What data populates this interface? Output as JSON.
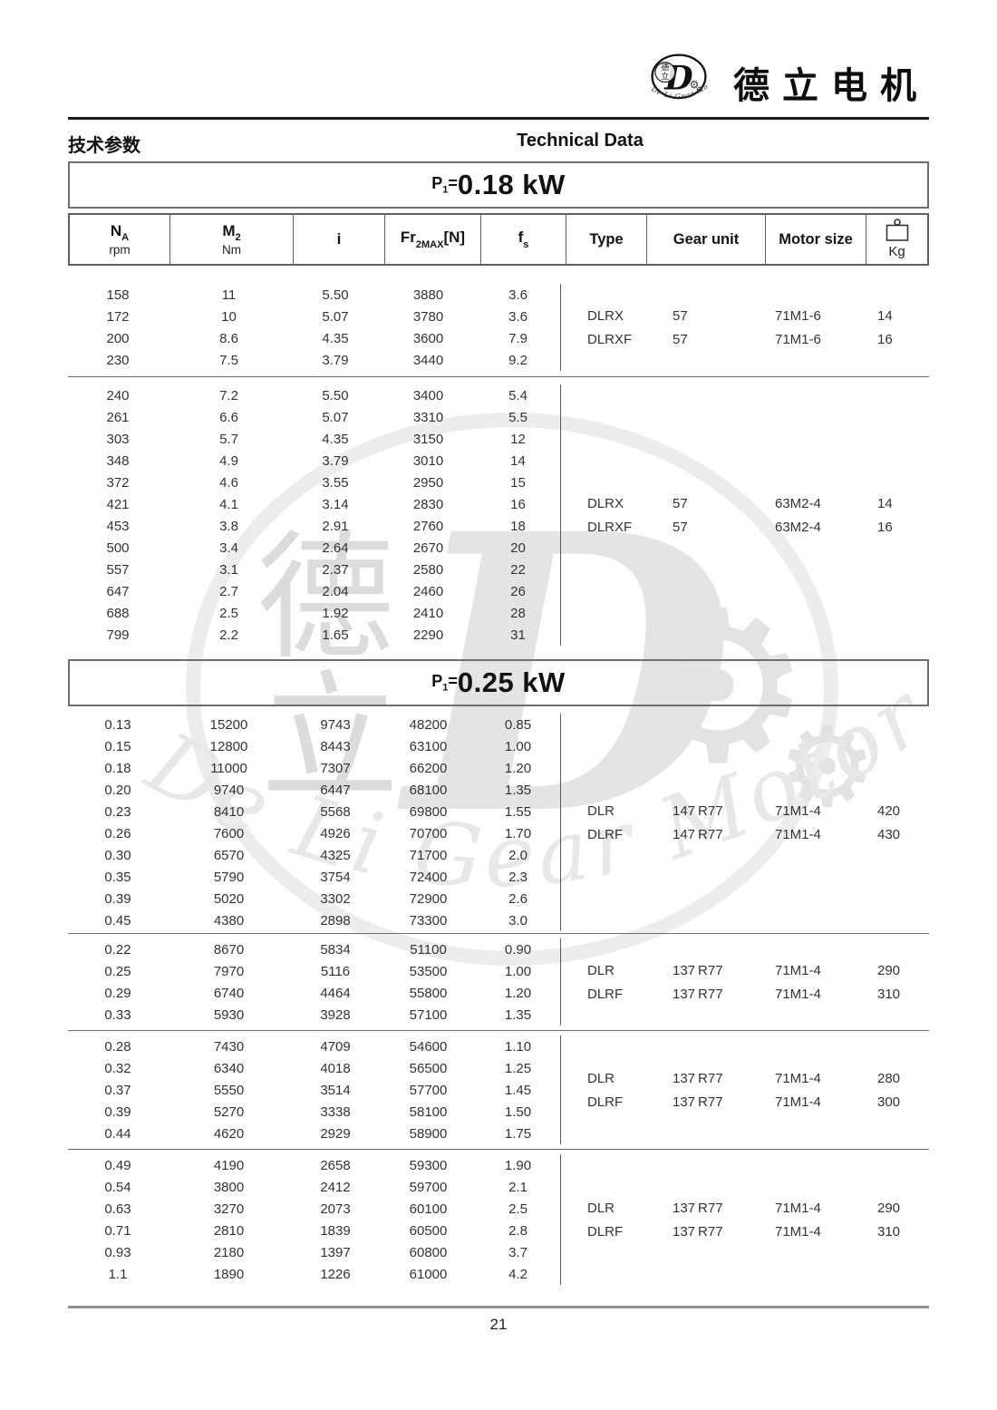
{
  "brand": {
    "name_cn": "德立电机",
    "emblem": {
      "cn_top": "德",
      "cn_bottom": "立",
      "letter": "D",
      "arc_text": "De Li Gear Motor"
    }
  },
  "header": {
    "title_cn": "技术参数",
    "title_en": "Technical Data"
  },
  "columns": {
    "na_sym": "N",
    "na_sub": "A",
    "na_unit": "rpm",
    "m2_sym": "M",
    "m2_sub": "2",
    "m2_unit": "Nm",
    "i_sym": "i",
    "fr_sym": "Fr",
    "fr_sub": "2MAX",
    "fr_bracket": "[N]",
    "fs_sym": "f",
    "fs_sub": "s",
    "type_label": "Type",
    "gear_label": "Gear unit",
    "motor_label": "Motor size",
    "kg_label": "Kg"
  },
  "sections": [
    {
      "power": {
        "prefix": "P",
        "sub": "1",
        "eq": "=",
        "value": "0.18 kW"
      },
      "groups": [
        {
          "rows": [
            [
              "158",
              "11",
              "5.50",
              "3880",
              "3.6"
            ],
            [
              "172",
              "10",
              "5.07",
              "3780",
              "3.6"
            ],
            [
              "200",
              "8.6",
              "4.35",
              "3600",
              "7.9"
            ],
            [
              "230",
              "7.5",
              "3.79",
              "3440",
              "9.2"
            ]
          ],
          "info": [
            [
              "DLRX",
              "57",
              "71M1-6",
              "14"
            ],
            [
              "DLRXF",
              "57",
              "71M1-6",
              "16"
            ]
          ]
        },
        {
          "rows": [
            [
              "240",
              "7.2",
              "5.50",
              "3400",
              "5.4"
            ],
            [
              "261",
              "6.6",
              "5.07",
              "3310",
              "5.5"
            ],
            [
              "303",
              "5.7",
              "4.35",
              "3150",
              "12"
            ],
            [
              "348",
              "4.9",
              "3.79",
              "3010",
              "14"
            ],
            [
              "372",
              "4.6",
              "3.55",
              "2950",
              "15"
            ],
            [
              "421",
              "4.1",
              "3.14",
              "2830",
              "16"
            ],
            [
              "453",
              "3.8",
              "2.91",
              "2760",
              "18"
            ],
            [
              "500",
              "3.4",
              "2.64",
              "2670",
              "20"
            ],
            [
              "557",
              "3.1",
              "2.37",
              "2580",
              "22"
            ],
            [
              "647",
              "2.7",
              "2.04",
              "2460",
              "26"
            ],
            [
              "688",
              "2.5",
              "1.92",
              "2410",
              "28"
            ],
            [
              "799",
              "2.2",
              "1.65",
              "2290",
              "31"
            ]
          ],
          "info": [
            [
              "DLRX",
              "57",
              "63M2-4",
              "14"
            ],
            [
              "DLRXF",
              "57",
              "63M2-4",
              "16"
            ]
          ]
        }
      ]
    },
    {
      "power": {
        "prefix": "P",
        "sub": "1",
        "eq": "=",
        "value": "0.25 kW"
      },
      "groups": [
        {
          "rows": [
            [
              "0.13",
              "15200",
              "9743",
              "48200",
              "0.85"
            ],
            [
              "0.15",
              "12800",
              "8443",
              "63100",
              "1.00"
            ],
            [
              "0.18",
              "11000",
              "7307",
              "66200",
              "1.20"
            ],
            [
              "0.20",
              "9740",
              "6447",
              "68100",
              "1.35"
            ],
            [
              "0.23",
              "8410",
              "5568",
              "69800",
              "1.55"
            ],
            [
              "0.26",
              "7600",
              "4926",
              "70700",
              "1.70"
            ],
            [
              "0.30",
              "6570",
              "4325",
              "71700",
              "2.0"
            ],
            [
              "0.35",
              "5790",
              "3754",
              "72400",
              "2.3"
            ],
            [
              "0.39",
              "5020",
              "3302",
              "72900",
              "2.6"
            ],
            [
              "0.45",
              "4380",
              "2898",
              "73300",
              "3.0"
            ]
          ],
          "info": [
            [
              "DLR",
              "147 R77",
              "71M1-4",
              "420"
            ],
            [
              "DLRF",
              "147 R77",
              "71M1-4",
              "430"
            ]
          ]
        },
        {
          "rows": [
            [
              "0.22",
              "8670",
              "5834",
              "51100",
              "0.90"
            ],
            [
              "0.25",
              "7970",
              "5116",
              "53500",
              "1.00"
            ],
            [
              "0.29",
              "6740",
              "4464",
              "55800",
              "1.20"
            ],
            [
              "0.33",
              "5930",
              "3928",
              "57100",
              "1.35"
            ]
          ],
          "info": [
            [
              "DLR",
              "137 R77",
              "71M1-4",
              "290"
            ],
            [
              "DLRF",
              "137 R77",
              "71M1-4",
              "310"
            ]
          ]
        },
        {
          "rows": [
            [
              "0.28",
              "7430",
              "4709",
              "54600",
              "1.10"
            ],
            [
              "0.32",
              "6340",
              "4018",
              "56500",
              "1.25"
            ],
            [
              "0.37",
              "5550",
              "3514",
              "57700",
              "1.45"
            ],
            [
              "0.39",
              "5270",
              "3338",
              "58100",
              "1.50"
            ],
            [
              "0.44",
              "4620",
              "2929",
              "58900",
              "1.75"
            ]
          ],
          "info": [
            [
              "DLR",
              "137 R77",
              "71M1-4",
              "280"
            ],
            [
              "DLRF",
              "137 R77",
              "71M1-4",
              "300"
            ]
          ]
        },
        {
          "rows": [
            [
              "0.49",
              "4190",
              "2658",
              "59300",
              "1.90"
            ],
            [
              "0.54",
              "3800",
              "2412",
              "59700",
              "2.1"
            ],
            [
              "0.63",
              "3270",
              "2073",
              "60100",
              "2.5"
            ],
            [
              "0.71",
              "2810",
              "1839",
              "60500",
              "2.8"
            ],
            [
              "0.93",
              "2180",
              "1397",
              "60800",
              "3.7"
            ],
            [
              "1.1",
              "1890",
              "1226",
              "61000",
              "4.2"
            ]
          ],
          "info": [
            [
              "DLR",
              "137 R77",
              "71M1-4",
              "290"
            ],
            [
              "DLRF",
              "137 R77",
              "71M1-4",
              "310"
            ]
          ]
        }
      ]
    }
  ],
  "footer": {
    "page_number": "21"
  }
}
